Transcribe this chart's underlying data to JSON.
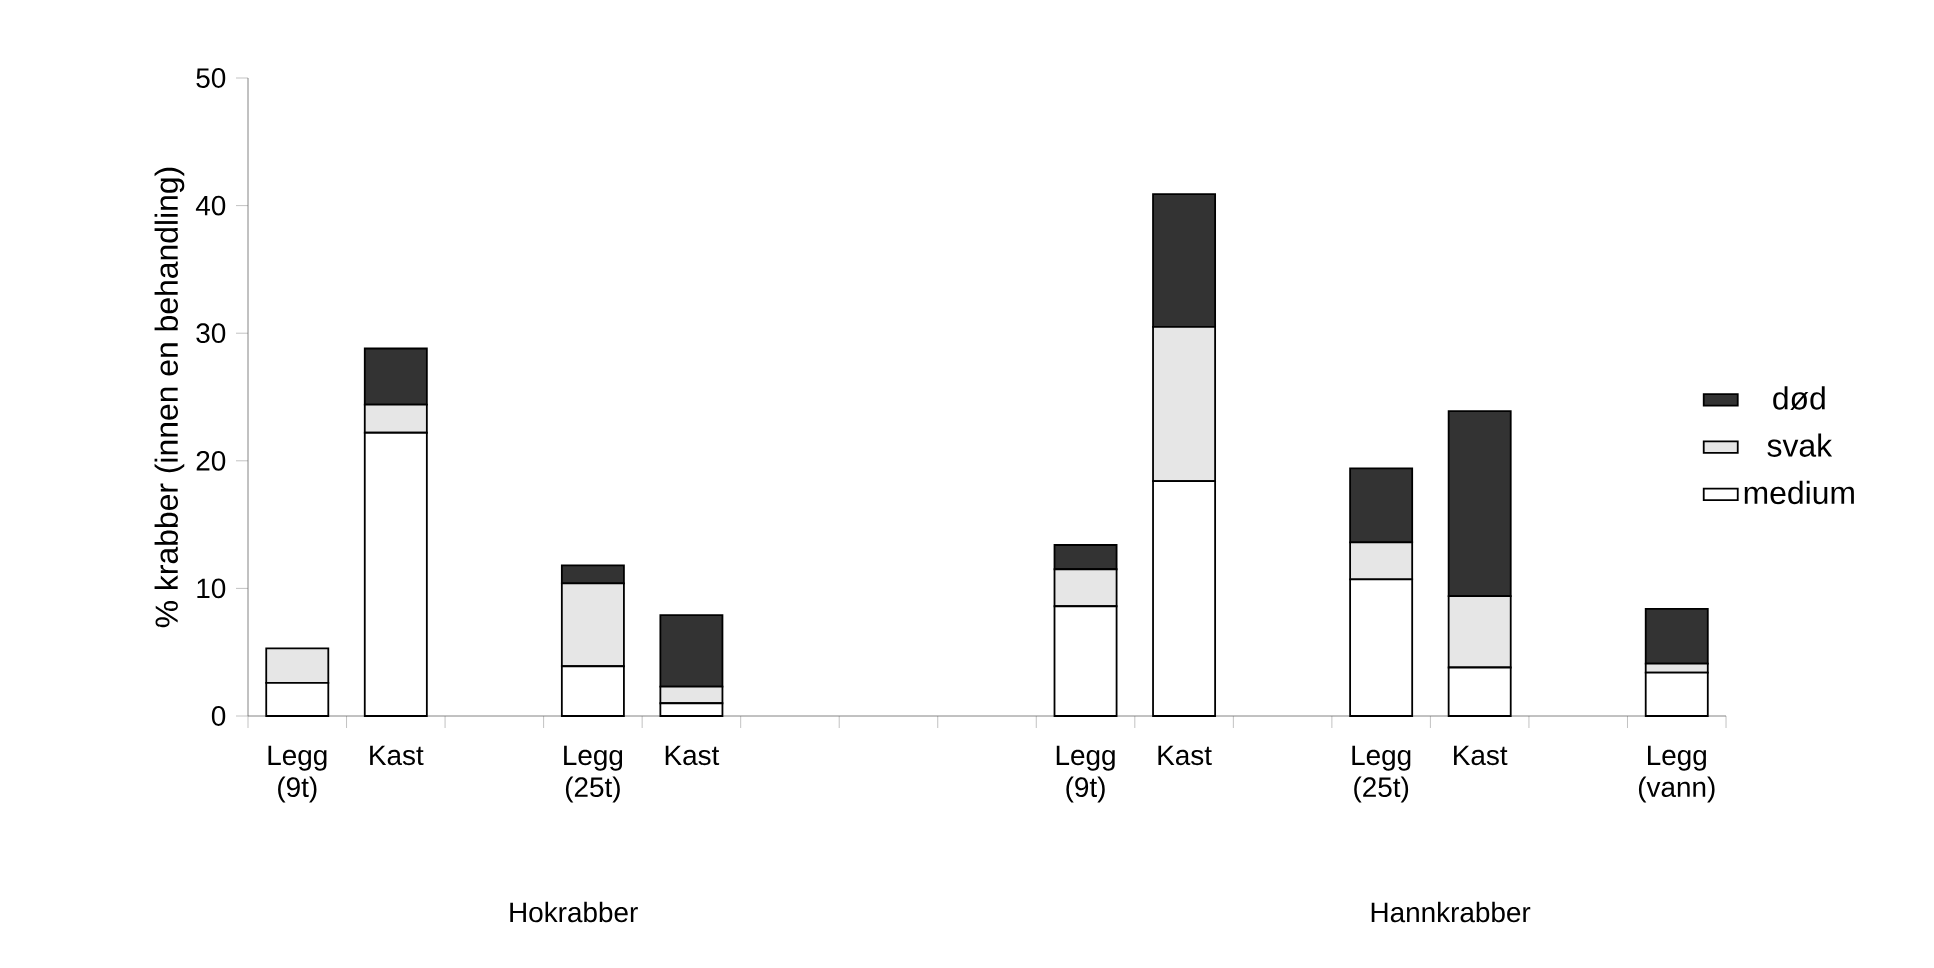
{
  "chart_data": {
    "type": "bar",
    "stacked": true,
    "ylabel": "% krabber (innen en behandling)",
    "categories": [
      "Legg (9t)",
      "Kast",
      null,
      "Legg (25t)",
      "Kast",
      null,
      null,
      null,
      "Legg (9t)",
      "Kast",
      null,
      "Legg (25t)",
      "Kast",
      null,
      "Legg (vann)"
    ],
    "series": [
      {
        "name": "medium",
        "color": "#ffffff",
        "values": [
          2.6,
          22.2,
          null,
          3.9,
          1.0,
          null,
          null,
          null,
          8.6,
          18.4,
          null,
          10.7,
          3.8,
          null,
          3.4
        ]
      },
      {
        "name": "svak",
        "color": "#e6e6e6",
        "values": [
          2.7,
          2.2,
          null,
          6.5,
          1.3,
          null,
          null,
          null,
          2.9,
          12.1,
          null,
          2.9,
          5.6,
          null,
          0.7
        ]
      },
      {
        "name": "død",
        "color": "#333333",
        "values": [
          0,
          4.4,
          null,
          1.4,
          5.6,
          null,
          null,
          null,
          1.9,
          10.4,
          null,
          5.8,
          14.5,
          null,
          4.3
        ]
      }
    ],
    "ylim": [
      0,
      50
    ],
    "yticks": [
      0,
      10,
      20,
      30,
      40,
      50
    ],
    "legend": "right",
    "grid": false,
    "annotations": [
      "Hokrabber",
      "Hannkrabber"
    ]
  }
}
